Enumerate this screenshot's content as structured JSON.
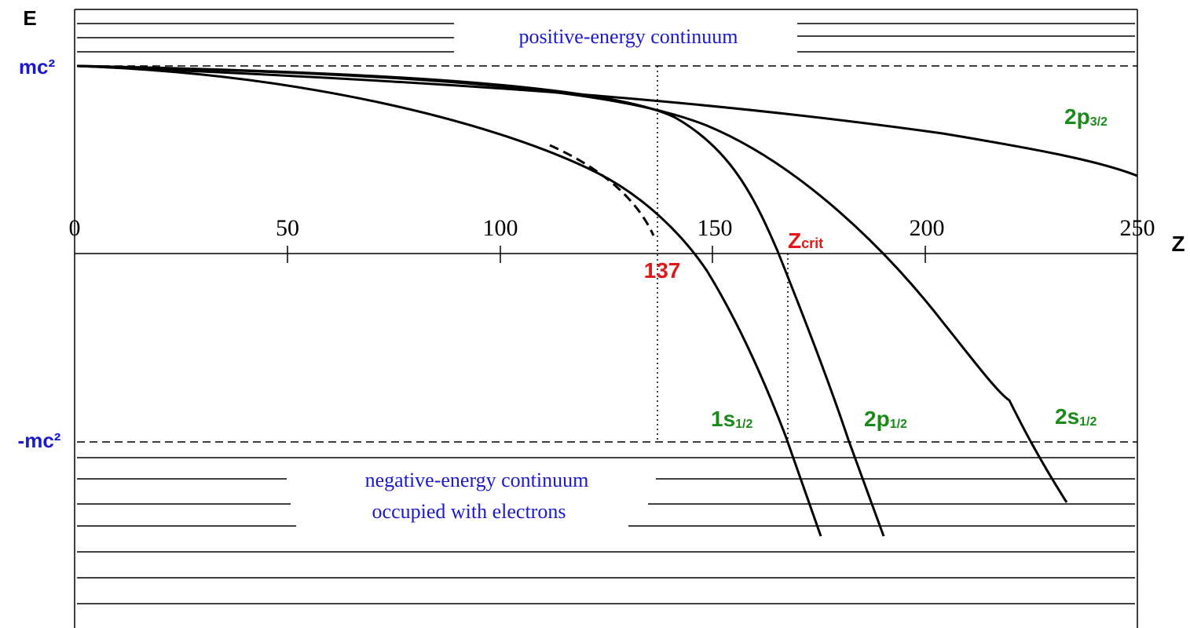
{
  "energy_axis": {
    "label": "E",
    "upper": "mc²",
    "lower": "-mc²"
  },
  "z_axis": {
    "label": "Z",
    "ticks": [
      "0",
      "50",
      "100",
      "150",
      "200",
      "250"
    ]
  },
  "continuum_labels": {
    "positive": "positive-energy continuum",
    "negative": [
      "negative-energy continuum",
      "occupied with electrons"
    ]
  },
  "markers": {
    "z137": "137",
    "zcrit": {
      "main": "Z",
      "sub": "crit"
    }
  },
  "levels": [
    {
      "main": "1s",
      "sub": "1/2"
    },
    {
      "main": "2p",
      "sub": "1/2"
    },
    {
      "main": "2s",
      "sub": "1/2"
    },
    {
      "main": "2p",
      "sub": "3/2"
    }
  ]
}
